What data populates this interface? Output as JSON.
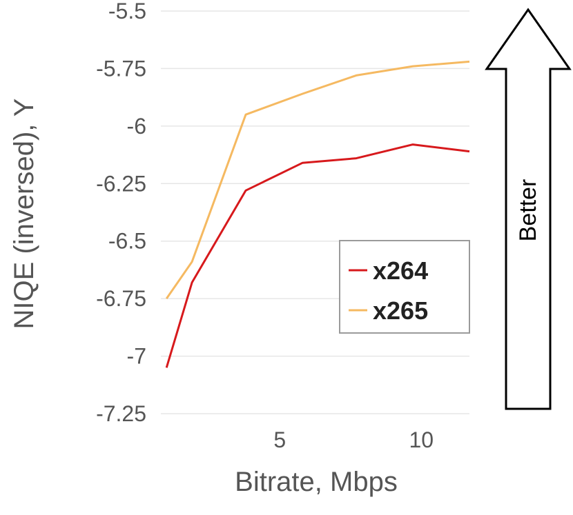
{
  "chart_data": {
    "type": "line",
    "title": "",
    "xlabel": "Bitrate, Mbps",
    "ylabel": "NIQE (inversed), Y",
    "xlim": [
      0.8,
      11.7
    ],
    "ylim": [
      -7.25,
      -5.5
    ],
    "xticks": [
      5,
      10
    ],
    "xtick_labels": [
      "5",
      "10"
    ],
    "yticks": [
      -5.5,
      -5.75,
      -6,
      -6.25,
      -6.5,
      -6.75,
      -7,
      -7.25
    ],
    "ytick_labels": [
      "-5.5",
      "-5.75",
      "-6",
      "-6.25",
      "-6.5",
      "-6.75",
      "-7",
      "-7.25"
    ],
    "grid": true,
    "legend_position": "lower-right",
    "series": [
      {
        "name": "x264",
        "color": "#d7191c",
        "x": [
          1.0,
          1.9,
          3.8,
          5.8,
          7.7,
          9.7,
          11.7
        ],
        "y": [
          -7.05,
          -6.68,
          -6.28,
          -6.16,
          -6.14,
          -6.08,
          -6.11
        ]
      },
      {
        "name": "x265",
        "color": "#f5b961",
        "x": [
          1.0,
          1.9,
          3.8,
          5.8,
          7.7,
          9.7,
          11.7
        ],
        "y": [
          -6.75,
          -6.59,
          -5.95,
          -5.86,
          -5.78,
          -5.74,
          -5.72
        ]
      }
    ]
  },
  "annotation": {
    "better_label": "Better"
  }
}
